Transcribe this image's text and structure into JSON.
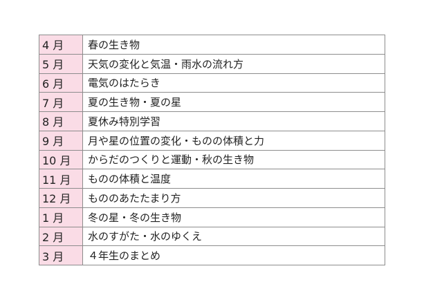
{
  "schedule": [
    {
      "month": "4 月",
      "topic": "春の生き物"
    },
    {
      "month": "5 月",
      "topic": "天気の変化と気温・雨水の流れ方"
    },
    {
      "month": "6 月",
      "topic": "電気のはたらき"
    },
    {
      "month": "7 月",
      "topic": "夏の生き物・夏の星"
    },
    {
      "month": "8 月",
      "topic": "夏休み特別学習"
    },
    {
      "month": "9 月",
      "topic": "月や星の位置の変化・ものの体積と力"
    },
    {
      "month": "10 月",
      "topic": "からだのつくりと運動・秋の生き物"
    },
    {
      "month": "11 月",
      "topic": "ものの体積と温度"
    },
    {
      "month": "12 月",
      "topic": "もののあたたまり方"
    },
    {
      "month": "1 月",
      "topic": "冬の星・冬の生き物"
    },
    {
      "month": "2 月",
      "topic": "水のすがた・水のゆくえ"
    },
    {
      "month": "3 月",
      "topic": "４年生のまとめ"
    }
  ],
  "colors": {
    "month_cell": "#fadce6",
    "border": "#8c8c8c"
  }
}
